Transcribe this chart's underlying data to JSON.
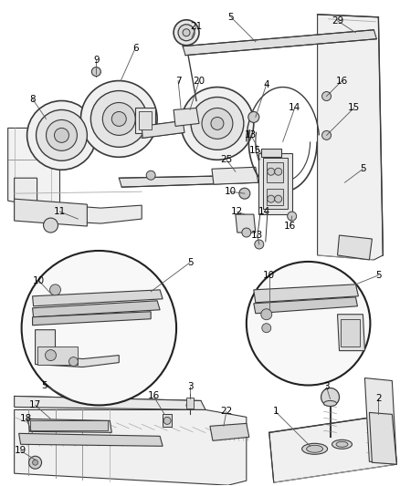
{
  "bg_color": "#ffffff",
  "line_color": "#3a3a3a",
  "text_color": "#000000",
  "fig_width": 4.38,
  "fig_height": 5.33,
  "dpi": 100,
  "label_fontsize": 7.5
}
